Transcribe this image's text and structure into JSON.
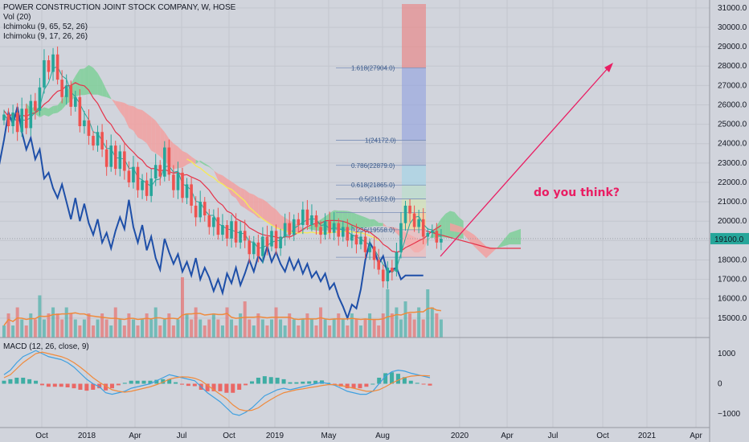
{
  "legend": {
    "main": "POWER CONSTRUCTION JOINT STOCK COMPANY, W, HOSE",
    "vol": "Vol (20)",
    "ichi1": "Ichimoku (9, 65, 52, 26)",
    "ichi2": "Ichimoku (9, 17, 26, 26)",
    "macd": "MACD (12, 26, close, 9)"
  },
  "current_price_label": "19100.0",
  "annotation": "do you think?",
  "colors": {
    "up": "#26a69a",
    "down": "#ef5350",
    "blue_line": "#1e4fa8",
    "red_line": "#e5334a",
    "yellow_line": "#f5e85a",
    "cloud_green": "#7fcf99",
    "cloud_red": "#f2a0a0",
    "arrow": "#e91e63",
    "macd_line": "#3fa0e0",
    "signal_line": "#f08a3c"
  },
  "chart_data": [
    {
      "type": "candlestick",
      "title": "POWER CONSTRUCTION JOINT STOCK COMPANY, W, HOSE",
      "x_ticks": [
        "Oct",
        "2018",
        "Apr",
        "Jul",
        "Oct",
        "2019",
        "May",
        "Aug",
        "2020",
        "Apr",
        "Jul",
        "Oct",
        "2021",
        "Apr"
      ],
      "y_ticks": [
        15000,
        16000,
        17000,
        18000,
        19000,
        20000,
        21000,
        22000,
        23000,
        24000,
        25000,
        26000,
        27000,
        28000,
        29000,
        30000,
        31000
      ],
      "ylim": [
        14000,
        31200
      ],
      "last_price": 19100,
      "series": [
        {
          "name": "close",
          "values": [
            25500,
            24900,
            25600,
            24600,
            25800,
            24800,
            26200,
            25700,
            26900,
            28300,
            27700,
            28600,
            27300,
            26400,
            27000,
            25900,
            26400,
            24900,
            25200,
            24400,
            23900,
            24600,
            23700,
            22800,
            23900,
            22700,
            23600,
            22600,
            22000,
            22800,
            21600,
            22100,
            21300,
            22200,
            22900,
            22300,
            23800,
            22400,
            21600,
            22500,
            21200,
            21900,
            20800,
            20200,
            21000,
            20300,
            19700,
            20200,
            19300,
            19800,
            19100,
            20000,
            18900,
            19500,
            19000,
            18300,
            18900,
            18200,
            19200,
            18700,
            19500,
            18600,
            19200,
            19900,
            19300,
            20100,
            19800,
            20600,
            19800,
            20300,
            19700,
            19300,
            20000,
            19400,
            19900,
            19200,
            19700,
            19000,
            19300,
            18800,
            19200,
            18400,
            18700,
            18000,
            17500,
            16900,
            17600,
            17400,
            18400,
            19900,
            20800,
            20400,
            19700,
            20100,
            19200,
            19400,
            19500,
            18900,
            19100
          ]
        }
      ]
    },
    {
      "type": "bar",
      "title": "Vol (20)",
      "series": [
        {
          "name": "volume",
          "values": [
            2,
            4,
            2,
            5,
            3,
            2,
            4,
            3,
            7,
            3,
            4,
            5,
            4,
            3,
            5,
            4,
            3,
            2,
            3,
            4,
            2,
            3,
            4,
            3,
            2,
            5,
            3,
            2,
            4,
            3,
            2,
            3,
            4,
            3,
            5,
            2,
            3,
            4,
            2,
            3,
            10,
            4,
            3,
            5,
            3,
            2,
            3,
            4,
            3,
            2,
            5,
            3,
            2,
            4,
            6,
            3,
            2,
            4,
            3,
            2,
            3,
            5,
            3,
            2,
            4,
            3,
            2,
            3,
            4,
            3,
            2,
            5,
            3,
            2,
            3,
            4,
            3,
            2,
            4,
            3,
            2,
            3,
            4,
            3,
            2,
            4,
            8,
            4,
            5,
            3,
            6,
            4,
            3,
            5,
            3,
            8,
            5,
            4,
            3
          ]
        }
      ]
    },
    {
      "type": "line",
      "title": "MACD (12, 26, close, 9)",
      "y_ticks": [
        1000,
        0,
        -1000
      ],
      "ylim": [
        -1400,
        1400
      ],
      "series": [
        {
          "name": "macd",
          "values": [
            300,
            450,
            700,
            900,
            1000,
            1100,
            1000,
            900,
            850,
            800,
            700,
            550,
            350,
            150,
            0,
            -100,
            -300,
            -350,
            -300,
            -250,
            -150,
            -100,
            -50,
            0,
            100,
            200,
            300,
            250,
            200,
            150,
            100,
            -100,
            -300,
            -450,
            -600,
            -800,
            -1000,
            -1050,
            -950,
            -800,
            -600,
            -400,
            -300,
            -200,
            -150,
            -200,
            -150,
            -100,
            -50,
            0,
            50,
            0,
            -50,
            -150,
            -250,
            -300,
            -350,
            -350,
            -250,
            0,
            250,
            400,
            450,
            420,
            350,
            300,
            250,
            200
          ]
        },
        {
          "name": "signal",
          "values": [
            200,
            300,
            500,
            700,
            850,
            1000,
            1050,
            1000,
            950,
            900,
            820,
            700,
            550,
            380,
            200,
            50,
            -80,
            -200,
            -250,
            -280,
            -250,
            -200,
            -150,
            -100,
            -30,
            50,
            150,
            200,
            230,
            220,
            180,
            100,
            -50,
            -200,
            -350,
            -500,
            -700,
            -850,
            -900,
            -880,
            -800,
            -650,
            -520,
            -400,
            -300,
            -250,
            -200,
            -170,
            -130,
            -100,
            -60,
            -30,
            -30,
            -60,
            -100,
            -150,
            -200,
            -250,
            -250,
            -200,
            -100,
            20,
            120,
            200,
            250,
            270,
            270,
            260
          ]
        },
        {
          "name": "histogram",
          "values": [
            100,
            150,
            200,
            200,
            150,
            100,
            -50,
            -100,
            -100,
            -100,
            -120,
            -150,
            -200,
            -230,
            -200,
            -150,
            -220,
            -150,
            -50,
            30,
            100,
            100,
            100,
            100,
            130,
            150,
            150,
            50,
            -30,
            -70,
            -80,
            -200,
            -250,
            -250,
            -250,
            -300,
            -300,
            -200,
            -50,
            80,
            200,
            250,
            220,
            200,
            150,
            50,
            50,
            70,
            80,
            100,
            110,
            30,
            -20,
            -90,
            -150,
            -150,
            -150,
            -100,
            0,
            200,
            350,
            380,
            330,
            220,
            100,
            30,
            -20,
            -60
          ]
        }
      ]
    }
  ]
}
